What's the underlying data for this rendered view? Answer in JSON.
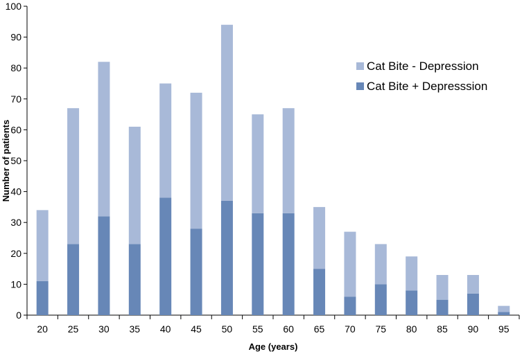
{
  "chart_data": {
    "type": "bar",
    "stacked": true,
    "xlabel": "Age (years)",
    "ylabel": "Number of patients",
    "ylim": [
      0,
      100
    ],
    "ytick_step": 10,
    "grid": false,
    "legend_position": "top-right",
    "categories": [
      "20",
      "25",
      "30",
      "35",
      "40",
      "45",
      "50",
      "55",
      "60",
      "65",
      "70",
      "75",
      "80",
      "85",
      "90",
      "95"
    ],
    "series": [
      {
        "name": "Cat Bite + Depresssion",
        "color": "#6787b7",
        "values": [
          11,
          23,
          32,
          23,
          38,
          28,
          37,
          33,
          33,
          15,
          6,
          10,
          8,
          5,
          7,
          1
        ]
      },
      {
        "name": "Cat Bite - Depression",
        "color": "#a8b9d8",
        "values": [
          23,
          44,
          50,
          38,
          37,
          44,
          57,
          32,
          34,
          20,
          21,
          13,
          11,
          8,
          6,
          2
        ]
      }
    ],
    "legend_order": [
      1,
      0
    ]
  }
}
